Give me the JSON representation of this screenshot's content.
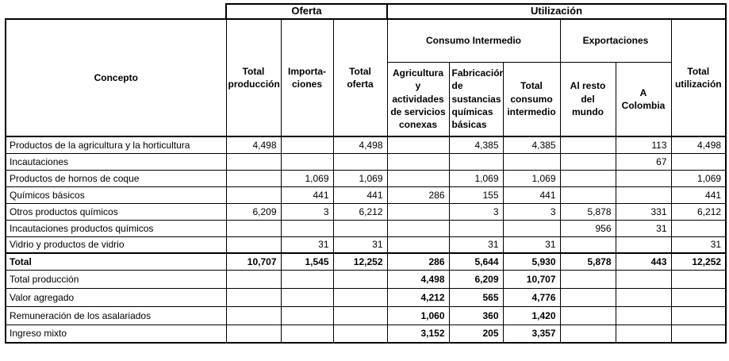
{
  "chart_data": {
    "type": "table",
    "title": "",
    "unit_note": "",
    "top_headers": {
      "oferta": "Oferta",
      "utilizacion": "Utilización"
    },
    "group_headers": {
      "consumo_intermedio": "Consumo Intermedio",
      "exportaciones": "Exportaciones"
    },
    "columns": [
      "Concepto",
      "Total producción",
      "Importaciones",
      "Total oferta",
      "Agricultura y actividades de servicios conexas",
      "Fabricación de sustancias químicas básicas",
      "Total consumo intermedio",
      "Al resto del mundo",
      "A Colombia",
      "Total utilización"
    ],
    "headers": {
      "concepto": "Concepto",
      "total_produccion": "Total\nproducción",
      "importaciones": "Importa-\nciones",
      "total_oferta": "Total oferta",
      "agricultura": "Agricultura\ny\nactividades\nde servicios\nconexas",
      "fabricacion": "Fabricación\nde\nsustancias\nquímicas\nbásicas",
      "total_consumo_intermedio": "Total\nconsumo\nintermedio",
      "al_resto_del_mundo": "Al resto del\nmundo",
      "a_colombia": "A Colombia",
      "total_utilizacion": "Total\nutilización"
    },
    "rows": [
      {
        "label": "Productos de la agricultura y la horticultura",
        "style": "normal",
        "values": [
          "4,498",
          "",
          "4,498",
          "",
          "4,385",
          "4,385",
          "",
          "113",
          "4,498"
        ]
      },
      {
        "label": "Incautaciones",
        "style": "normal",
        "values": [
          "",
          "",
          "",
          "",
          "",
          "",
          "",
          "67",
          ""
        ]
      },
      {
        "label": "Productos de hornos de coque",
        "style": "normal",
        "values": [
          "",
          "1,069",
          "1,069",
          "",
          "1,069",
          "1,069",
          "",
          "",
          "1,069"
        ]
      },
      {
        "label": "Químicos básicos",
        "style": "normal",
        "values": [
          "",
          "441",
          "441",
          "286",
          "155",
          "441",
          "",
          "",
          "441"
        ]
      },
      {
        "label": "Otros productos químicos",
        "style": "normal",
        "values": [
          "6,209",
          "3",
          "6,212",
          "",
          "3",
          "3",
          "5,878",
          "331",
          "6,212"
        ]
      },
      {
        "label": "Incautaciones productos químicos",
        "style": "normal",
        "values": [
          "",
          "",
          "",
          "",
          "",
          "",
          "956",
          "31",
          ""
        ]
      },
      {
        "label": "Vidrio y productos de vidrio",
        "style": "normal",
        "values": [
          "",
          "31",
          "31",
          "",
          "31",
          "31",
          "",
          "",
          "31"
        ]
      },
      {
        "label": "Total",
        "style": "total",
        "values": [
          "10,707",
          "1,545",
          "12,252",
          "286",
          "5,644",
          "5,930",
          "5,878",
          "443",
          "12,252"
        ]
      },
      {
        "label": "Total producción",
        "style": "summary",
        "values": [
          "",
          "",
          "",
          "4,498",
          "6,209",
          "10,707",
          "",
          "",
          ""
        ]
      },
      {
        "label": "Valor agregado",
        "style": "summary",
        "values": [
          "",
          "",
          "",
          "4,212",
          "565",
          "4,776",
          "",
          "",
          ""
        ]
      },
      {
        "label": "Remuneración de los asalariados",
        "style": "summary",
        "values": [
          "",
          "",
          "",
          "1,060",
          "360",
          "1,420",
          "",
          "",
          ""
        ]
      },
      {
        "label": "Ingreso mixto",
        "style": "summary",
        "values": [
          "",
          "",
          "",
          "3,152",
          "205",
          "3,357",
          "",
          "",
          ""
        ]
      }
    ]
  }
}
